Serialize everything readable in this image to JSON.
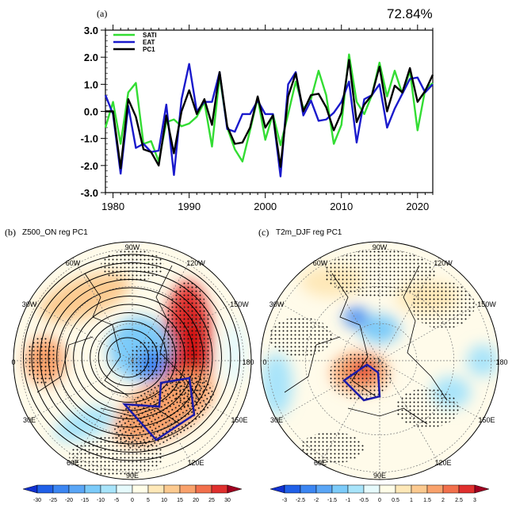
{
  "chart_data": [
    {
      "type": "line",
      "panel_label": "(a)",
      "annotation": "72.84%",
      "x": [
        1979,
        1980,
        1981,
        1982,
        1983,
        1984,
        1985,
        1986,
        1987,
        1988,
        1989,
        1990,
        1991,
        1992,
        1993,
        1994,
        1995,
        1996,
        1997,
        1998,
        1999,
        2000,
        2001,
        2002,
        2003,
        2004,
        2005,
        2006,
        2007,
        2008,
        2009,
        2010,
        2011,
        2012,
        2013,
        2014,
        2015,
        2016,
        2017,
        2018,
        2019,
        2020,
        2021,
        2022
      ],
      "series": [
        {
          "name": "SATI",
          "color": "#33dd33",
          "values": [
            -0.6,
            0.35,
            -1.2,
            0.7,
            1.05,
            -1.2,
            -1.1,
            -1.85,
            -0.4,
            -0.3,
            -0.55,
            -0.45,
            -0.2,
            0.35,
            -1.3,
            1.3,
            -0.6,
            -1.4,
            -1.85,
            -0.7,
            0.5,
            -1.05,
            -0.1,
            -1.25,
            -0.1,
            1.1,
            0.1,
            0.45,
            1.5,
            0.6,
            -1.2,
            -0.5,
            2.1,
            0.35,
            -0.1,
            0.6,
            1.8,
            0.55,
            1.5,
            0.65,
            1.5,
            -0.7,
            0.8,
            1.05
          ]
        },
        {
          "name": "EAT",
          "color": "#1a1acc",
          "values": [
            0.6,
            -0.1,
            -2.3,
            0.2,
            -1.35,
            -1.2,
            -1.5,
            -1.45,
            0.25,
            -2.35,
            0.45,
            1.75,
            0.0,
            0.35,
            0.35,
            1.45,
            -0.65,
            -0.75,
            -0.1,
            -0.1,
            0.4,
            -0.1,
            -0.1,
            -2.4,
            1.0,
            1.45,
            -0.15,
            0.4,
            -0.35,
            -0.3,
            -0.05,
            0.35,
            1.1,
            -1.15,
            0.45,
            0.6,
            1.0,
            -0.6,
            0.1,
            0.65,
            1.2,
            1.25,
            0.7,
            1.0
          ]
        },
        {
          "name": "PC1",
          "color": "#000000",
          "values": [
            0.0,
            0.0,
            -2.1,
            0.45,
            -0.2,
            -1.4,
            -1.5,
            -2.0,
            -0.15,
            -1.55,
            0.0,
            0.78,
            -0.1,
            0.45,
            -0.5,
            1.45,
            -0.55,
            -1.2,
            -1.15,
            -0.6,
            0.55,
            -0.6,
            -0.15,
            -2.05,
            0.55,
            1.4,
            0.0,
            0.6,
            0.65,
            0.15,
            -0.7,
            -0.05,
            1.9,
            -0.4,
            0.25,
            0.6,
            1.65,
            0.0,
            0.95,
            0.7,
            1.6,
            0.35,
            0.75,
            1.35
          ]
        }
      ],
      "xlim": [
        1979,
        2022
      ],
      "ylim": [
        -3.0,
        3.0
      ],
      "xticks": [
        "1980",
        "1990",
        "2000",
        "2010",
        "2020"
      ],
      "yticks": [
        "3.0",
        "2.0",
        "1.0",
        "0.0",
        "-1.0",
        "-2.0",
        "-3.0"
      ],
      "legend": "top-left",
      "grid": false
    },
    {
      "type": "heatmap",
      "panel_label": "(b)",
      "title": "Z500_ON reg PC1",
      "projection": "north polar stereographic",
      "lon_labels": [
        "90W",
        "60W",
        "120W",
        "30W",
        "150W",
        "0",
        "180",
        "30E",
        "150E",
        "60E",
        "120E",
        "90E"
      ],
      "colorbar_levels": [
        "-30",
        "-25",
        "-20",
        "-15",
        "-10",
        "-5",
        "0",
        "5",
        "10",
        "15",
        "20",
        "25",
        "30"
      ],
      "features": "positive anomaly over North Pacific/east Asia, negative over Arctic, blue box region, stippling significant, black climatology contours"
    },
    {
      "type": "heatmap",
      "panel_label": "(c)",
      "title": "T2m_DJF reg PC1",
      "projection": "north polar stereographic",
      "lon_labels": [
        "90W",
        "60W",
        "120W",
        "30W",
        "150W",
        "0",
        "180",
        "30E",
        "150E",
        "60E",
        "120E",
        "90E"
      ],
      "colorbar_levels": [
        "-3",
        "-2.5",
        "-2",
        "-1.5",
        "-1",
        "-0.5",
        "0",
        "0.5",
        "1",
        "1.5",
        "2",
        "2.5",
        "3"
      ]
    }
  ],
  "colorbar_colors": [
    "#1030d0",
    "#2060e8",
    "#3c86f2",
    "#5aa6f6",
    "#7ccbf9",
    "#a8e4fa",
    "#e6fafc",
    "#fffde8",
    "#fee8b8",
    "#fcca90",
    "#f9a26c",
    "#f2704c",
    "#e0302e",
    "#a00020"
  ]
}
